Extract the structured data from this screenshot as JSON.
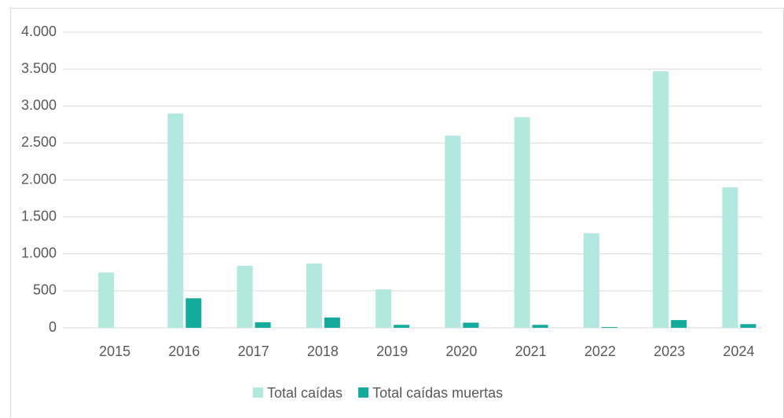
{
  "chart_data": {
    "type": "bar",
    "categories": [
      "2015",
      "2016",
      "2017",
      "2018",
      "2019",
      "2020",
      "2021",
      "2022",
      "2023",
      "2024"
    ],
    "series": [
      {
        "name": "Total caídas",
        "color": "#b3e8df",
        "values": [
          750,
          2900,
          840,
          870,
          520,
          2600,
          2850,
          1280,
          3470,
          1900
        ]
      },
      {
        "name": "Total caídas muertas",
        "color": "#14ab9d",
        "values": [
          0,
          400,
          75,
          140,
          40,
          70,
          40,
          10,
          105,
          50
        ]
      }
    ],
    "ylim": [
      0,
      4000
    ],
    "yticks": [
      0,
      500,
      {
        "value": 1000,
        "label": "1.000"
      },
      {
        "value": 1500,
        "label": "1.500"
      },
      {
        "value": 2000,
        "label": "2.000"
      },
      {
        "value": 2500,
        "label": "2.500"
      },
      {
        "value": 3000,
        "label": "3.000"
      },
      {
        "value": 3500,
        "label": "3.500"
      },
      {
        "value": 4000,
        "label": "4.000"
      }
    ],
    "grid": true,
    "legend": "bottom"
  }
}
